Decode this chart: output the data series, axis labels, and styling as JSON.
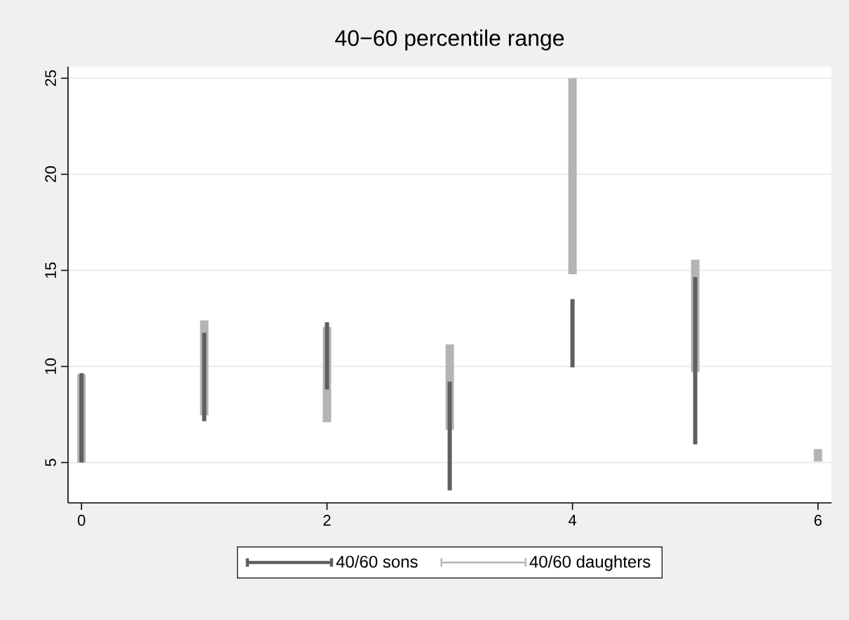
{
  "chart_data": {
    "type": "bar",
    "title": "40−60 percentile range",
    "x": [
      0,
      1,
      2,
      3,
      4,
      5,
      6
    ],
    "series": [
      {
        "name": "40/60 sons",
        "color": "#5f5f5f",
        "base": [
          5.0,
          7.15,
          8.8,
          3.55,
          9.95,
          5.95,
          null
        ],
        "values": [
          4.65,
          4.6,
          3.5,
          5.65,
          3.55,
          8.7,
          null
        ]
      },
      {
        "name": "40/60 daughters",
        "color": "#b4b4b4",
        "base": [
          5.0,
          7.45,
          7.1,
          6.7,
          14.8,
          9.7,
          5.05
        ],
        "values": [
          4.6,
          4.95,
          4.95,
          4.45,
          10.2,
          5.85,
          0.65
        ]
      }
    ],
    "xlim": [
      -0.11,
      6.11
    ],
    "ylim": [
      2.9,
      25.6
    ],
    "xticks": [
      0,
      2,
      4,
      6
    ],
    "yticks": [
      5,
      10,
      15,
      20,
      25
    ],
    "grid": "y",
    "legend": "bottom"
  }
}
